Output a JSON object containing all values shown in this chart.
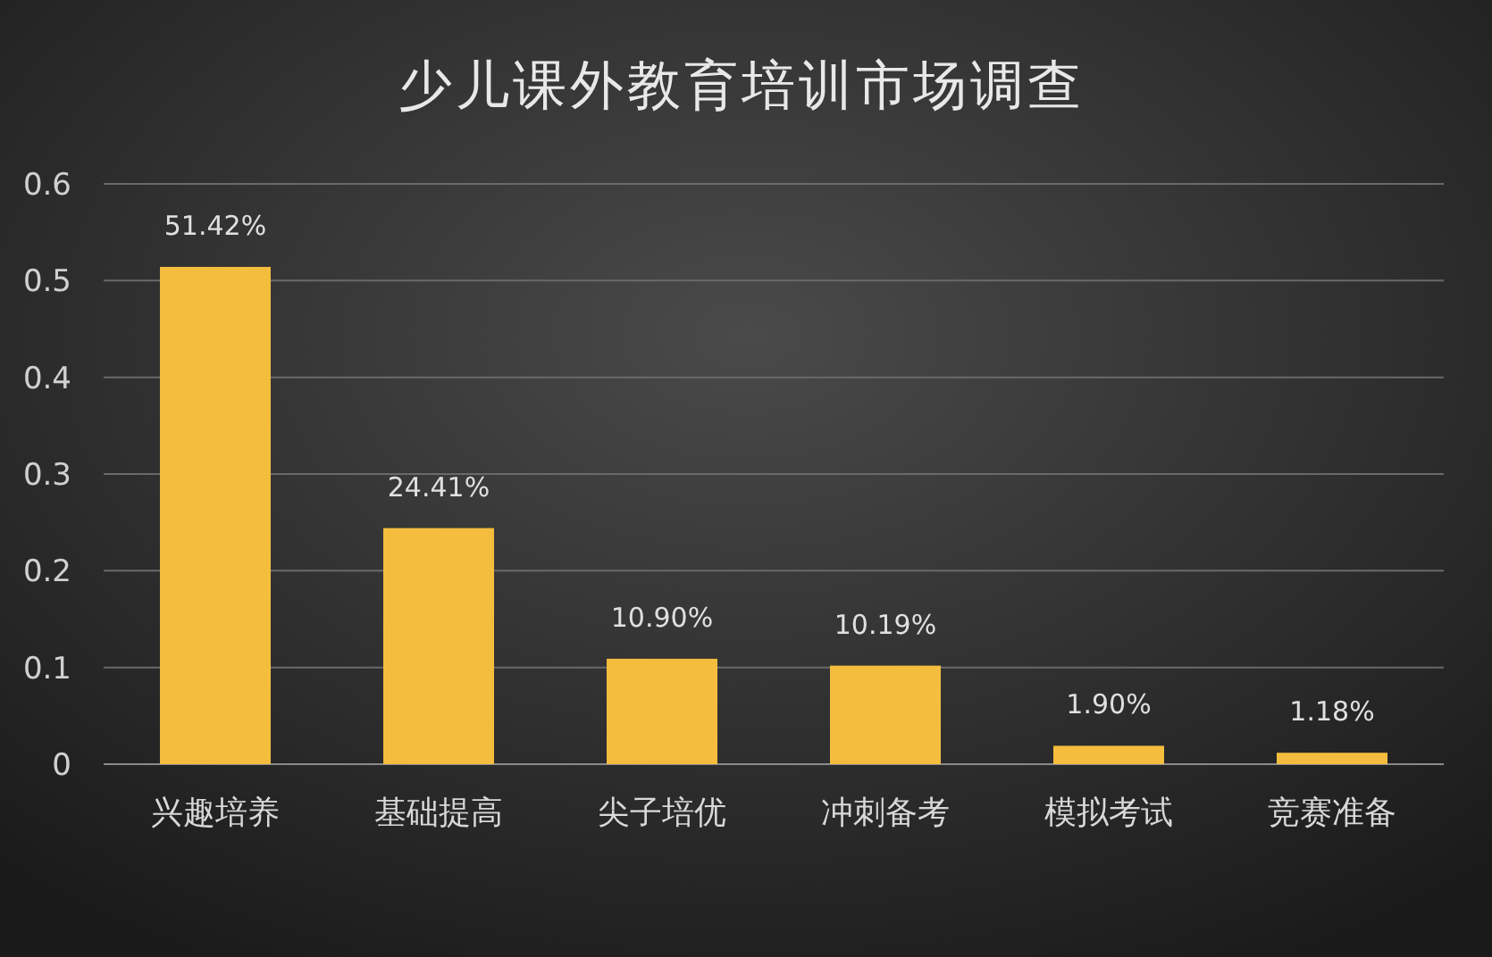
{
  "chart_data": {
    "type": "bar",
    "title": "少儿课外教育培训市场调查",
    "categories": [
      "兴趣培养",
      "基础提高",
      "尖子培优",
      "冲刺备考",
      "模拟考试",
      "竞赛准备"
    ],
    "values": [
      0.5142,
      0.2441,
      0.109,
      0.1019,
      0.019,
      0.0118
    ],
    "value_labels": [
      "51.42%",
      "24.41%",
      "10.90%",
      "10.19%",
      "1.90%",
      "1.18%"
    ],
    "color": "#f5bd3e",
    "ylim": [
      0,
      0.6
    ],
    "yticks": [
      0,
      0.1,
      0.2,
      0.3,
      0.4,
      0.5,
      0.6
    ],
    "grid": "y"
  }
}
